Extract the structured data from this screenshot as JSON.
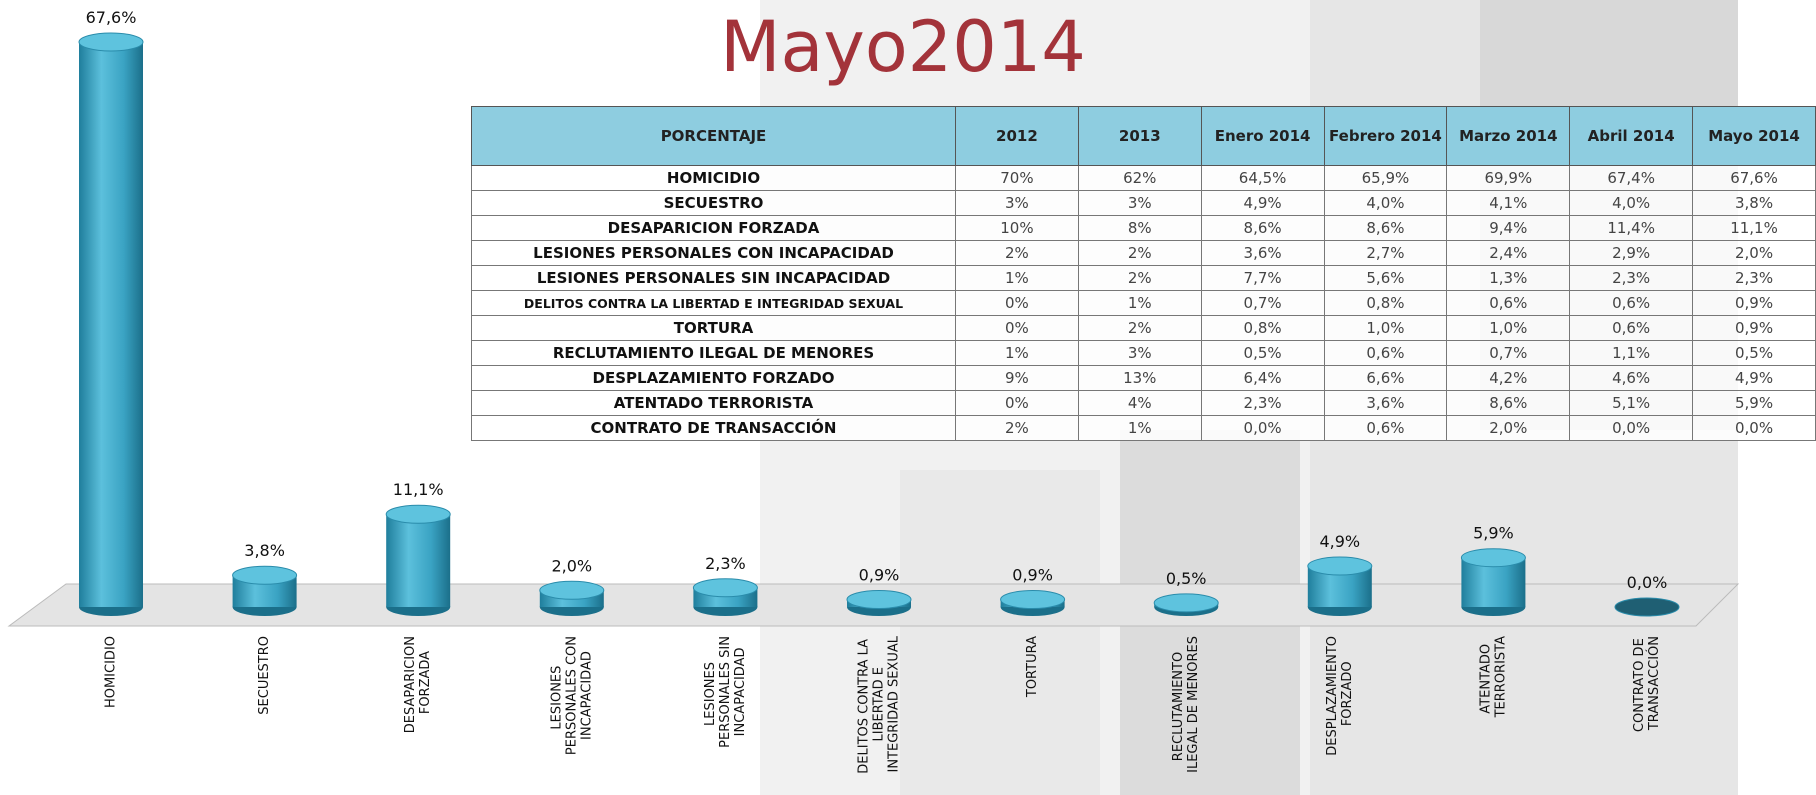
{
  "chart_data": {
    "type": "bar",
    "title": "Mayo2014",
    "color": "#3aa3c3",
    "categories": [
      "HOMICIDIO",
      "SECUESTRO",
      "DESAPARICION FORZADA",
      "LESIONES PERSONALES CON INCAPACIDAD",
      "LESIONES PERSONALES SIN INCAPACIDAD",
      "DELITOS CONTRA LA LIBERTAD E INTEGRIDAD SEXUAL",
      "TORTURA",
      "RECLUTAMIENTO ILEGAL DE MENORES",
      "DESPLAZAMIENTO FORZADO",
      "ATENTADO TERRORISTA",
      "CONTRATO DE TRANSACCIÓN"
    ],
    "values": [
      67.6,
      3.8,
      11.1,
      2.0,
      2.3,
      0.9,
      0.9,
      0.5,
      4.9,
      5.9,
      0.0
    ],
    "value_labels": [
      "67,6%",
      "3,8%",
      "11,1%",
      "2,0%",
      "2,3%",
      "0,9%",
      "0,9%",
      "0,5%",
      "4,9%",
      "5,9%",
      "0,0%"
    ]
  },
  "table": {
    "header": [
      "PORCENTAJE",
      "2012",
      "2013",
      "Enero 2014",
      "Febrero 2014",
      "Marzo 2014",
      "Abril 2014",
      "Mayo 2014"
    ],
    "rows": [
      [
        "HOMICIDIO",
        "70%",
        "62%",
        "64,5%",
        "65,9%",
        "69,9%",
        "67,4%",
        "67,6%"
      ],
      [
        "SECUESTRO",
        "3%",
        "3%",
        "4,9%",
        "4,0%",
        "4,1%",
        "4,0%",
        "3,8%"
      ],
      [
        "DESAPARICION FORZADA",
        "10%",
        "8%",
        "8,6%",
        "8,6%",
        "9,4%",
        "11,4%",
        "11,1%"
      ],
      [
        "LESIONES PERSONALES CON INCAPACIDAD",
        "2%",
        "2%",
        "3,6%",
        "2,7%",
        "2,4%",
        "2,9%",
        "2,0%"
      ],
      [
        "LESIONES PERSONALES SIN INCAPACIDAD",
        "1%",
        "2%",
        "7,7%",
        "5,6%",
        "1,3%",
        "2,3%",
        "2,3%"
      ],
      [
        "DELITOS CONTRA LA LIBERTAD E INTEGRIDAD SEXUAL",
        "0%",
        "1%",
        "0,7%",
        "0,8%",
        "0,6%",
        "0,6%",
        "0,9%"
      ],
      [
        "TORTURA",
        "0%",
        "2%",
        "0,8%",
        "1,0%",
        "1,0%",
        "0,6%",
        "0,9%"
      ],
      [
        "RECLUTAMIENTO ILEGAL DE MENORES",
        "1%",
        "3%",
        "0,5%",
        "0,6%",
        "0,7%",
        "1,1%",
        "0,5%"
      ],
      [
        "DESPLAZAMIENTO FORZADO",
        "9%",
        "13%",
        "6,4%",
        "6,6%",
        "4,2%",
        "4,6%",
        "4,9%"
      ],
      [
        "ATENTADO TERRORISTA",
        "0%",
        "4%",
        "2,3%",
        "3,6%",
        "8,6%",
        "5,1%",
        "5,9%"
      ],
      [
        "CONTRATO DE TRANSACCIÓN",
        "2%",
        "1%",
        "0,0%",
        "0,6%",
        "2,0%",
        "0,0%",
        "0,0%"
      ]
    ]
  }
}
